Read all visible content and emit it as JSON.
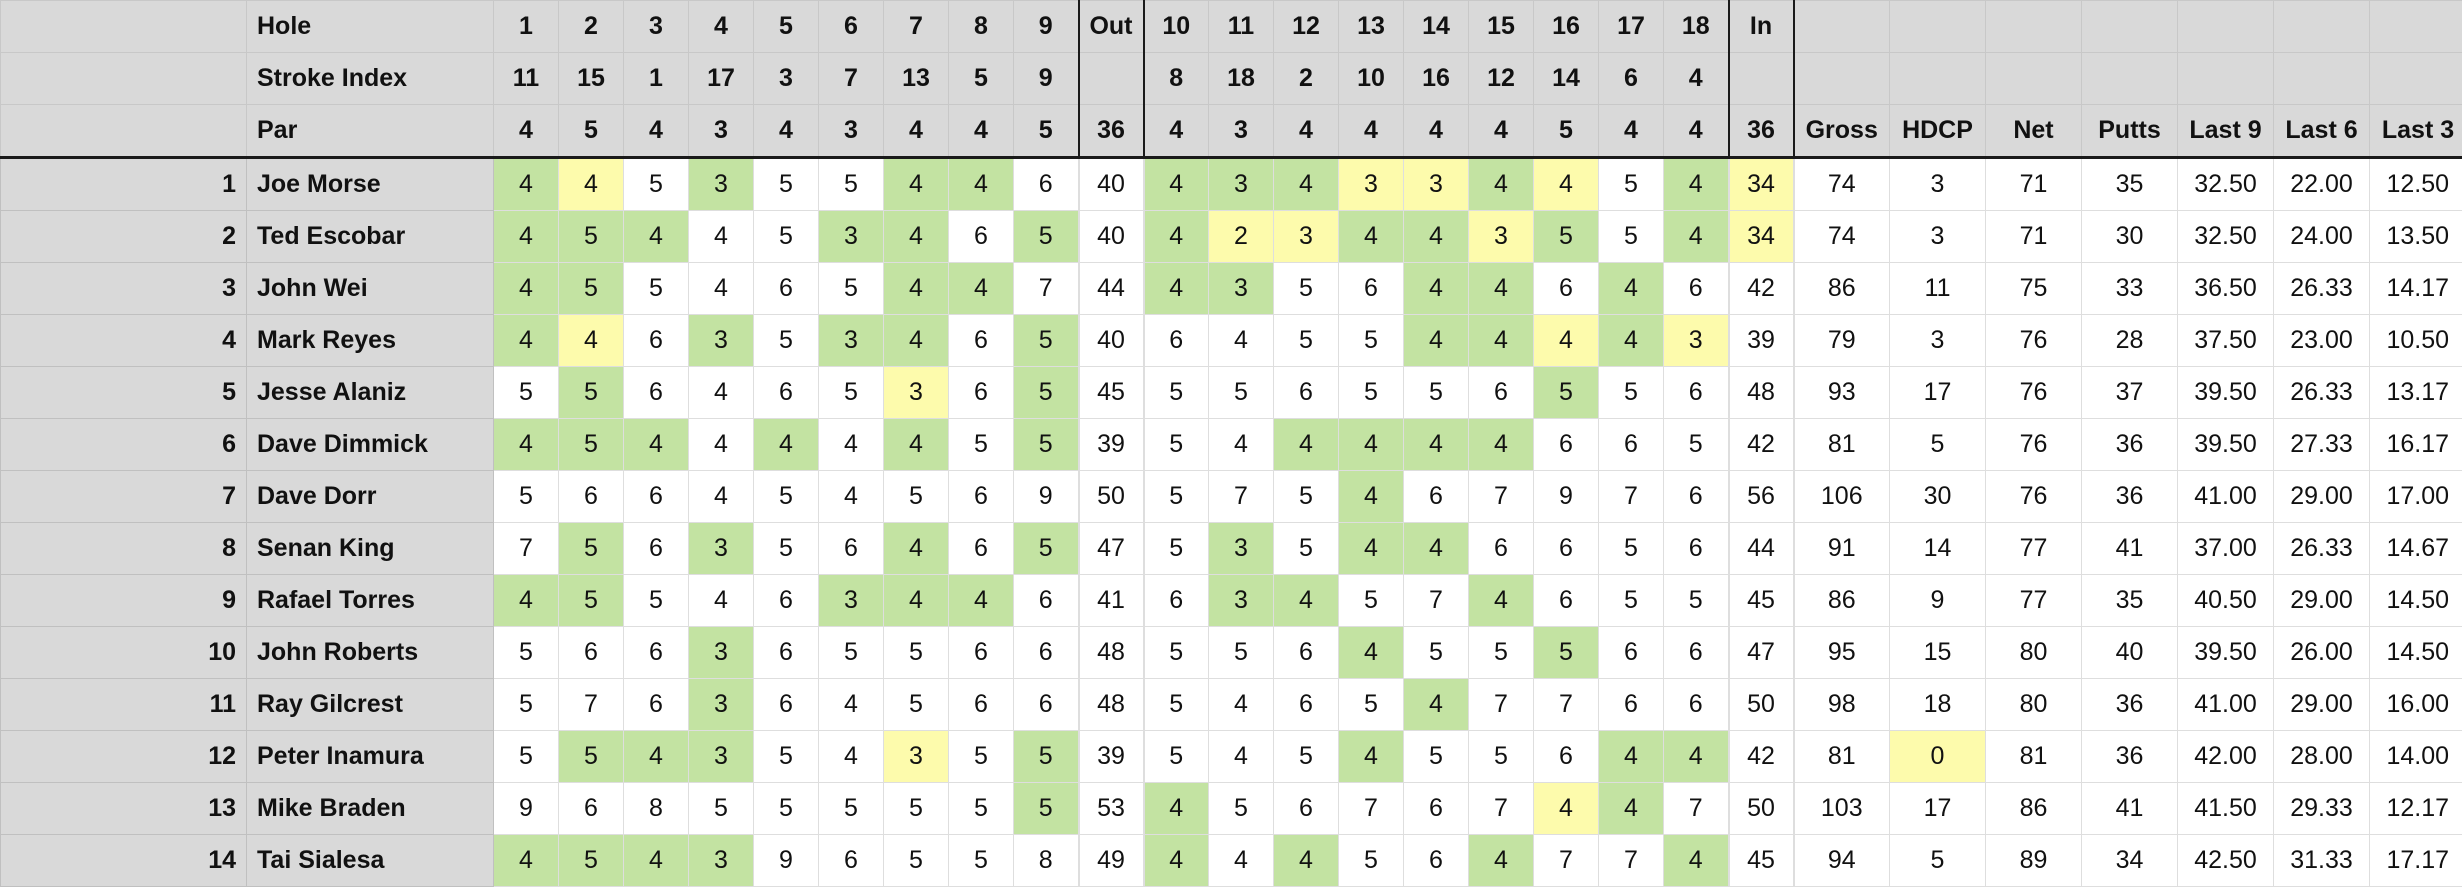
{
  "colors": {
    "header_bg": "#d9d9d9",
    "better_than_par": "#c3e3a2",
    "highlight": "#fdfbac",
    "cell_bg": "#ffffff"
  },
  "headers": {
    "hole_label": "Hole",
    "stroke_index_label": "Stroke Index",
    "par_label": "Par",
    "holes": [
      "1",
      "2",
      "3",
      "4",
      "5",
      "6",
      "7",
      "8",
      "9",
      "Out",
      "10",
      "11",
      "12",
      "13",
      "14",
      "15",
      "16",
      "17",
      "18",
      "In"
    ],
    "stroke_index": [
      "11",
      "15",
      "1",
      "17",
      "3",
      "7",
      "13",
      "5",
      "9",
      "",
      "8",
      "18",
      "2",
      "10",
      "16",
      "12",
      "14",
      "6",
      "4",
      ""
    ],
    "par": [
      "4",
      "5",
      "4",
      "3",
      "4",
      "3",
      "4",
      "4",
      "5",
      "36",
      "4",
      "3",
      "4",
      "4",
      "4",
      "4",
      "5",
      "4",
      "4",
      "36"
    ],
    "stats": [
      "Gross",
      "HDCP",
      "Net",
      "Putts",
      "Last 9",
      "Last 6",
      "Last 3"
    ]
  },
  "players": [
    {
      "rank": "1",
      "name": "Joe Morse",
      "scores": [
        "4",
        "4",
        "5",
        "3",
        "5",
        "5",
        "4",
        "4",
        "6",
        "40",
        "4",
        "3",
        "4",
        "3",
        "3",
        "4",
        "4",
        "5",
        "4",
        "34"
      ],
      "marks": [
        "g",
        "y",
        "",
        "g",
        "",
        "",
        "g",
        "g",
        "",
        "",
        "g",
        "g",
        "g",
        "y",
        "y",
        "g",
        "y",
        "",
        "g",
        "y"
      ],
      "stats": [
        "74",
        "3",
        "71",
        "35",
        "32.50",
        "22.00",
        "12.50"
      ],
      "stat_marks": [
        "",
        "",
        "",
        "",
        "",
        "",
        ""
      ]
    },
    {
      "rank": "2",
      "name": "Ted Escobar",
      "scores": [
        "4",
        "5",
        "4",
        "4",
        "5",
        "3",
        "4",
        "6",
        "5",
        "40",
        "4",
        "2",
        "3",
        "4",
        "4",
        "3",
        "5",
        "5",
        "4",
        "34"
      ],
      "marks": [
        "g",
        "g",
        "g",
        "",
        "",
        "g",
        "g",
        "",
        "g",
        "",
        "g",
        "y",
        "y",
        "g",
        "g",
        "y",
        "g",
        "",
        "g",
        "y"
      ],
      "stats": [
        "74",
        "3",
        "71",
        "30",
        "32.50",
        "24.00",
        "13.50"
      ],
      "stat_marks": [
        "",
        "",
        "",
        "",
        "",
        "",
        ""
      ]
    },
    {
      "rank": "3",
      "name": "John Wei",
      "scores": [
        "4",
        "5",
        "5",
        "4",
        "6",
        "5",
        "4",
        "4",
        "7",
        "44",
        "4",
        "3",
        "5",
        "6",
        "4",
        "4",
        "6",
        "4",
        "6",
        "42"
      ],
      "marks": [
        "g",
        "g",
        "",
        "",
        "",
        "",
        "g",
        "g",
        "",
        "",
        "g",
        "g",
        "",
        "",
        "g",
        "g",
        "",
        "g",
        "",
        ""
      ],
      "stats": [
        "86",
        "11",
        "75",
        "33",
        "36.50",
        "26.33",
        "14.17"
      ],
      "stat_marks": [
        "",
        "",
        "",
        "",
        "",
        "",
        ""
      ]
    },
    {
      "rank": "4",
      "name": "Mark Reyes",
      "scores": [
        "4",
        "4",
        "6",
        "3",
        "5",
        "3",
        "4",
        "6",
        "5",
        "40",
        "6",
        "4",
        "5",
        "5",
        "4",
        "4",
        "4",
        "4",
        "3",
        "39"
      ],
      "marks": [
        "g",
        "y",
        "",
        "g",
        "",
        "g",
        "g",
        "",
        "g",
        "",
        "",
        "",
        "",
        "",
        "g",
        "g",
        "y",
        "g",
        "y",
        ""
      ],
      "stats": [
        "79",
        "3",
        "76",
        "28",
        "37.50",
        "23.00",
        "10.50"
      ],
      "stat_marks": [
        "",
        "",
        "",
        "",
        "",
        "",
        ""
      ]
    },
    {
      "rank": "5",
      "name": "Jesse Alaniz",
      "scores": [
        "5",
        "5",
        "6",
        "4",
        "6",
        "5",
        "3",
        "6",
        "5",
        "45",
        "5",
        "5",
        "6",
        "5",
        "5",
        "6",
        "5",
        "5",
        "6",
        "48"
      ],
      "marks": [
        "",
        "g",
        "",
        "",
        "",
        "",
        "y",
        "",
        "g",
        "",
        "",
        "",
        "",
        "",
        "",
        "",
        "g",
        "",
        "",
        ""
      ],
      "stats": [
        "93",
        "17",
        "76",
        "37",
        "39.50",
        "26.33",
        "13.17"
      ],
      "stat_marks": [
        "",
        "",
        "",
        "",
        "",
        "",
        ""
      ]
    },
    {
      "rank": "6",
      "name": "Dave Dimmick",
      "scores": [
        "4",
        "5",
        "4",
        "4",
        "4",
        "4",
        "4",
        "5",
        "5",
        "39",
        "5",
        "4",
        "4",
        "4",
        "4",
        "4",
        "6",
        "6",
        "5",
        "42"
      ],
      "marks": [
        "g",
        "g",
        "g",
        "",
        "g",
        "",
        "g",
        "",
        "g",
        "",
        "",
        "",
        "g",
        "g",
        "g",
        "g",
        "",
        "",
        "",
        ""
      ],
      "stats": [
        "81",
        "5",
        "76",
        "36",
        "39.50",
        "27.33",
        "16.17"
      ],
      "stat_marks": [
        "",
        "",
        "",
        "",
        "",
        "",
        ""
      ]
    },
    {
      "rank": "7",
      "name": "Dave Dorr",
      "scores": [
        "5",
        "6",
        "6",
        "4",
        "5",
        "4",
        "5",
        "6",
        "9",
        "50",
        "5",
        "7",
        "5",
        "4",
        "6",
        "7",
        "9",
        "7",
        "6",
        "56"
      ],
      "marks": [
        "",
        "",
        "",
        "",
        "",
        "",
        "",
        "",
        "",
        "",
        "",
        "",
        "",
        "g",
        "",
        "",
        "",
        "",
        "",
        ""
      ],
      "stats": [
        "106",
        "30",
        "76",
        "36",
        "41.00",
        "29.00",
        "17.00"
      ],
      "stat_marks": [
        "",
        "",
        "",
        "",
        "",
        "",
        ""
      ]
    },
    {
      "rank": "8",
      "name": "Senan King",
      "scores": [
        "7",
        "5",
        "6",
        "3",
        "5",
        "6",
        "4",
        "6",
        "5",
        "47",
        "5",
        "3",
        "5",
        "4",
        "4",
        "6",
        "6",
        "5",
        "6",
        "44"
      ],
      "marks": [
        "",
        "g",
        "",
        "g",
        "",
        "",
        "g",
        "",
        "g",
        "",
        "",
        "g",
        "",
        "g",
        "g",
        "",
        "",
        "",
        "",
        ""
      ],
      "stats": [
        "91",
        "14",
        "77",
        "41",
        "37.00",
        "26.33",
        "14.67"
      ],
      "stat_marks": [
        "",
        "",
        "",
        "",
        "",
        "",
        ""
      ]
    },
    {
      "rank": "9",
      "name": "Rafael Torres",
      "scores": [
        "4",
        "5",
        "5",
        "4",
        "6",
        "3",
        "4",
        "4",
        "6",
        "41",
        "6",
        "3",
        "4",
        "5",
        "7",
        "4",
        "6",
        "5",
        "5",
        "45"
      ],
      "marks": [
        "g",
        "g",
        "",
        "",
        "",
        "g",
        "g",
        "g",
        "",
        "",
        "",
        "g",
        "g",
        "",
        "",
        "g",
        "",
        "",
        "",
        ""
      ],
      "stats": [
        "86",
        "9",
        "77",
        "35",
        "40.50",
        "29.00",
        "14.50"
      ],
      "stat_marks": [
        "",
        "",
        "",
        "",
        "",
        "",
        ""
      ]
    },
    {
      "rank": "10",
      "name": "John Roberts",
      "scores": [
        "5",
        "6",
        "6",
        "3",
        "6",
        "5",
        "5",
        "6",
        "6",
        "48",
        "5",
        "5",
        "6",
        "4",
        "5",
        "5",
        "5",
        "6",
        "6",
        "47"
      ],
      "marks": [
        "",
        "",
        "",
        "g",
        "",
        "",
        "",
        "",
        "",
        "",
        "",
        "",
        "",
        "g",
        "",
        "",
        "g",
        "",
        "",
        ""
      ],
      "stats": [
        "95",
        "15",
        "80",
        "40",
        "39.50",
        "26.00",
        "14.50"
      ],
      "stat_marks": [
        "",
        "",
        "",
        "",
        "",
        "",
        ""
      ]
    },
    {
      "rank": "11",
      "name": "Ray Gilcrest",
      "scores": [
        "5",
        "7",
        "6",
        "3",
        "6",
        "4",
        "5",
        "6",
        "6",
        "48",
        "5",
        "4",
        "6",
        "5",
        "4",
        "7",
        "7",
        "6",
        "6",
        "50"
      ],
      "marks": [
        "",
        "",
        "",
        "g",
        "",
        "",
        "",
        "",
        "",
        "",
        "",
        "",
        "",
        "",
        "g",
        "",
        "",
        "",
        "",
        ""
      ],
      "stats": [
        "98",
        "18",
        "80",
        "36",
        "41.00",
        "29.00",
        "16.00"
      ],
      "stat_marks": [
        "",
        "",
        "",
        "",
        "",
        "",
        ""
      ]
    },
    {
      "rank": "12",
      "name": "Peter Inamura",
      "scores": [
        "5",
        "5",
        "4",
        "3",
        "5",
        "4",
        "3",
        "5",
        "5",
        "39",
        "5",
        "4",
        "5",
        "4",
        "5",
        "5",
        "6",
        "4",
        "4",
        "42"
      ],
      "marks": [
        "",
        "g",
        "g",
        "g",
        "",
        "",
        "y",
        "",
        "g",
        "",
        "",
        "",
        "",
        "g",
        "",
        "",
        "",
        "g",
        "g",
        ""
      ],
      "stats": [
        "81",
        "0",
        "81",
        "36",
        "42.00",
        "28.00",
        "14.00"
      ],
      "stat_marks": [
        "",
        "y",
        "",
        "",
        "",
        "",
        ""
      ]
    },
    {
      "rank": "13",
      "name": "Mike Braden",
      "scores": [
        "9",
        "6",
        "8",
        "5",
        "5",
        "5",
        "5",
        "5",
        "5",
        "53",
        "4",
        "5",
        "6",
        "7",
        "6",
        "7",
        "4",
        "4",
        "7",
        "50"
      ],
      "marks": [
        "",
        "",
        "",
        "",
        "",
        "",
        "",
        "",
        "g",
        "",
        "g",
        "",
        "",
        "",
        "",
        "",
        "y",
        "g",
        "",
        ""
      ],
      "stats": [
        "103",
        "17",
        "86",
        "41",
        "41.50",
        "29.33",
        "12.17"
      ],
      "stat_marks": [
        "",
        "",
        "",
        "",
        "",
        "",
        ""
      ]
    },
    {
      "rank": "14",
      "name": "Tai Sialesa",
      "scores": [
        "4",
        "5",
        "4",
        "3",
        "9",
        "6",
        "5",
        "5",
        "8",
        "49",
        "4",
        "4",
        "4",
        "5",
        "6",
        "4",
        "7",
        "7",
        "4",
        "45"
      ],
      "marks": [
        "g",
        "g",
        "g",
        "g",
        "",
        "",
        "",
        "",
        "",
        "",
        "g",
        "",
        "g",
        "",
        "",
        "g",
        "",
        "",
        "g",
        ""
      ],
      "stats": [
        "94",
        "5",
        "89",
        "34",
        "42.50",
        "31.33",
        "17.17"
      ],
      "stat_marks": [
        "",
        "",
        "",
        "",
        "",
        "",
        ""
      ]
    }
  ]
}
